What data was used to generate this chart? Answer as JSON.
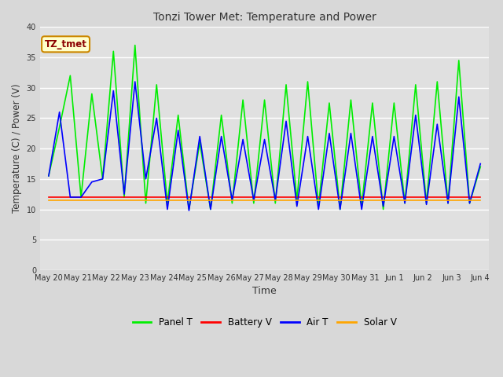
{
  "title": "Tonzi Tower Met: Temperature and Power",
  "xlabel": "Time",
  "ylabel": "Temperature (C) / Power (V)",
  "ylim": [
    0,
    40
  ],
  "yticks": [
    0,
    5,
    10,
    15,
    20,
    25,
    30,
    35,
    40
  ],
  "annotation": "TZ_tmet",
  "fig_bg_color": "#d8d8d8",
  "plot_bg_color": "#e0e0e0",
  "xtick_labels": [
    "May 20",
    "May 21",
    "May 22",
    "May 23",
    "May 24",
    "May 25",
    "May 26",
    "May 27",
    "May 28",
    "May 29",
    "May 30",
    "May 31",
    "Jun 1",
    "Jun 2",
    "Jun 3",
    "Jun 4"
  ],
  "panel_t_color": "#00ee00",
  "battery_v_color": "#ff0000",
  "air_t_color": "#0000ff",
  "solar_v_color": "#ffa500",
  "legend_labels": [
    "Panel T",
    "Battery V",
    "Air T",
    "Solar V"
  ],
  "panel_t": [
    15.5,
    23.5,
    32.0,
    12.0,
    29.0,
    15.0,
    36.0,
    12.0,
    37.0,
    11.0,
    30.5,
    11.0,
    25.5,
    10.0,
    21.0,
    10.0,
    25.5,
    11.0,
    28.0,
    11.0,
    28.0,
    11.0,
    30.5,
    11.5,
    31.0,
    10.5,
    27.5,
    10.0,
    28.0,
    10.5,
    27.5,
    10.0,
    27.5,
    11.0,
    30.5,
    11.0,
    31.0,
    11.0,
    34.5,
    11.0,
    17.0
  ],
  "air_t": [
    15.5,
    26.0,
    12.0,
    12.0,
    14.5,
    15.0,
    29.5,
    12.5,
    31.0,
    15.0,
    25.0,
    10.0,
    23.0,
    9.8,
    22.0,
    10.0,
    22.0,
    11.5,
    21.5,
    11.5,
    21.5,
    11.5,
    24.5,
    10.5,
    22.0,
    10.0,
    22.5,
    10.0,
    22.5,
    10.0,
    22.0,
    10.5,
    22.0,
    11.0,
    25.5,
    10.8,
    24.0,
    11.0,
    28.5,
    11.0,
    17.5
  ],
  "battery_v": [
    12.0,
    12.0,
    12.0,
    12.0,
    12.0,
    12.0,
    12.0,
    12.0,
    12.0,
    12.0,
    12.0,
    12.0,
    12.0,
    12.0,
    12.0,
    12.0,
    12.0,
    12.0,
    12.0,
    12.0,
    12.0,
    12.0,
    12.0,
    12.0,
    12.0,
    12.0,
    12.0,
    12.0,
    12.0,
    12.0,
    12.0,
    12.0,
    12.0,
    12.0,
    12.0,
    12.0,
    12.0,
    12.0,
    12.0,
    12.0,
    12.0
  ],
  "solar_v": [
    11.5,
    11.5,
    11.5,
    11.5,
    11.5,
    11.5,
    11.5,
    11.5,
    11.5,
    11.5,
    11.5,
    11.5,
    11.5,
    11.5,
    11.5,
    11.5,
    11.5,
    11.5,
    11.5,
    11.5,
    11.5,
    11.5,
    11.5,
    11.5,
    11.5,
    11.5,
    11.5,
    11.5,
    11.5,
    11.5,
    11.5,
    11.5,
    11.5,
    11.5,
    11.5,
    11.5,
    11.5,
    11.5,
    11.5,
    11.5,
    11.5
  ]
}
